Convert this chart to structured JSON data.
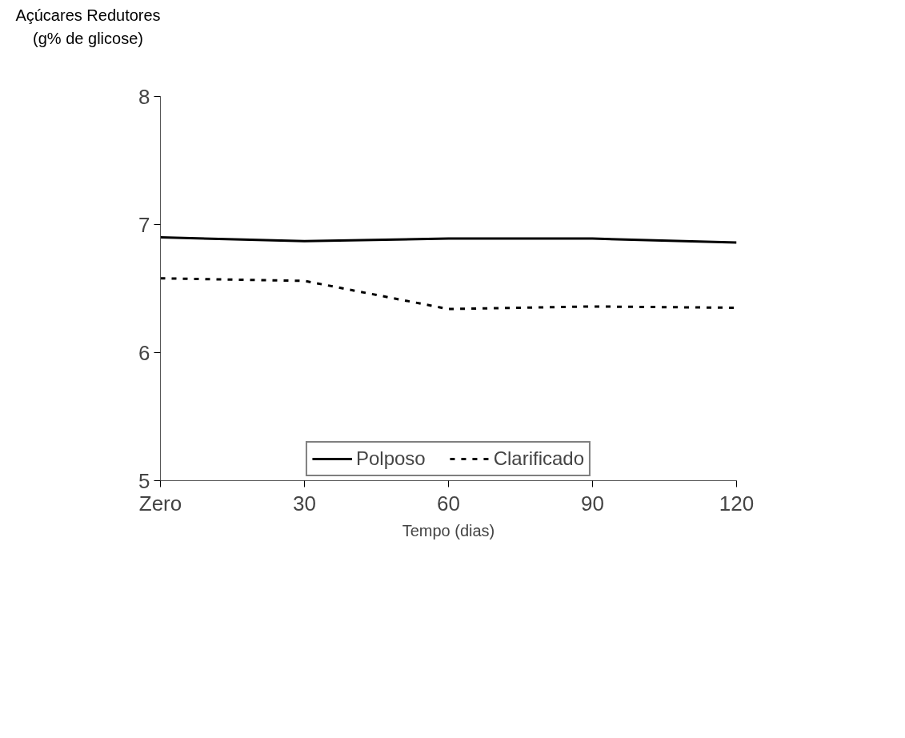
{
  "chart_data": {
    "type": "line",
    "ylabel": "Açúcares Redutores (g% de glicose)",
    "xlabel": "Tempo (dias)",
    "x": [
      0,
      30,
      60,
      90,
      120
    ],
    "series": [
      {
        "name": "Polposo",
        "color": "#000000",
        "line_style": "solid",
        "values": [
          6.9,
          6.87,
          6.89,
          6.89,
          6.86
        ]
      },
      {
        "name": "Clarificado",
        "color": "#000000",
        "line_style": "dotted",
        "values": [
          6.58,
          6.56,
          6.34,
          6.36,
          6.35
        ]
      }
    ],
    "xlim": [
      0,
      120
    ],
    "xticks": [
      {
        "value": 0,
        "label": "Zero"
      },
      30,
      60,
      90,
      120
    ],
    "ylim": [
      5,
      8
    ],
    "yticks": [
      5,
      6,
      7,
      8
    ],
    "grid": false,
    "legend": "bottom",
    "marker": "none"
  }
}
